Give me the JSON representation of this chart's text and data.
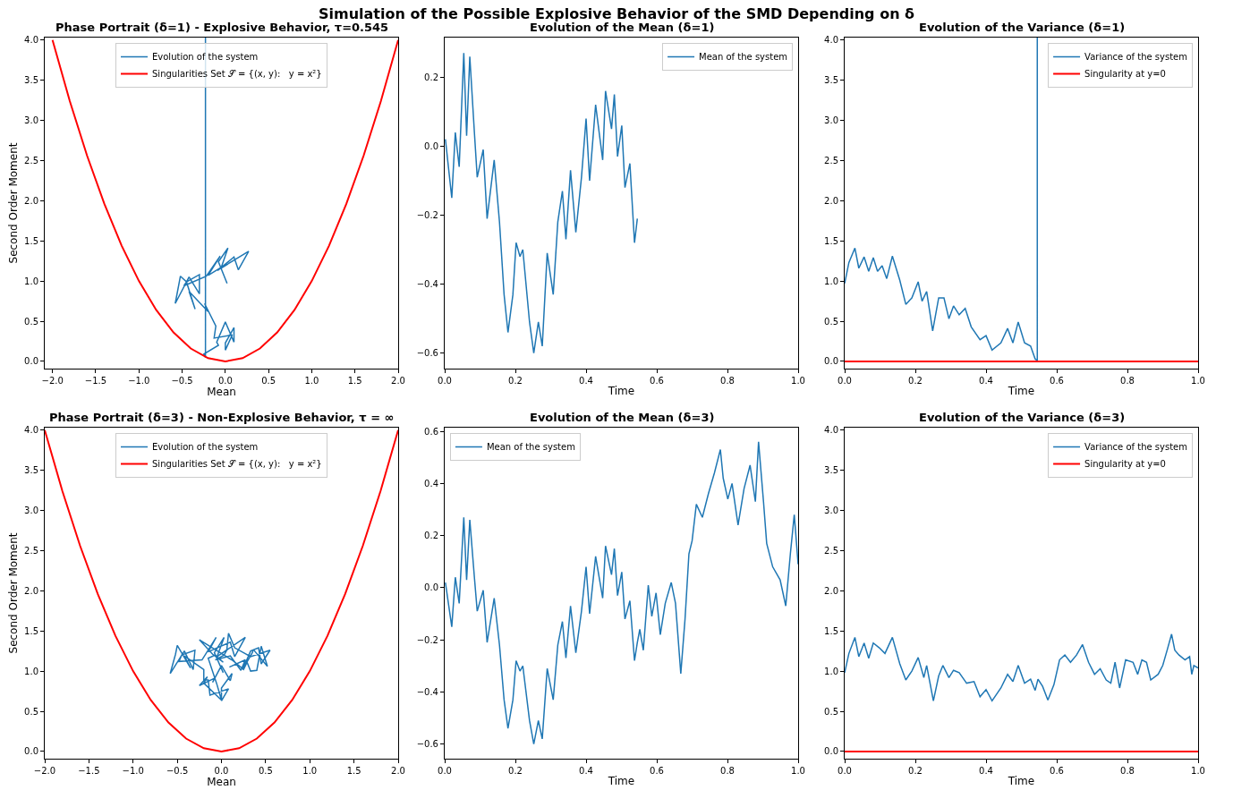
{
  "chart_data": [
    {
      "type": "line",
      "title": "Phase Portrait (δ=1) - Explosive Behavior, τ=0.545",
      "xlabel": "Mean",
      "ylabel": "Second Order Moment",
      "annotations": [
        "Simulation of the Possible Explosive Behavior of the SMD Depending on δ"
      ],
      "legend": "top",
      "xlim": [
        -2.09,
        2.0
      ],
      "ylim": [
        -0.09,
        4.03
      ],
      "xticks": [
        {
          "value": -2,
          "label": "−2.0"
        },
        {
          "value": -1.5,
          "label": "−1.5"
        },
        {
          "value": -1,
          "label": "−1.0"
        },
        {
          "value": -0.5,
          "label": "−0.5"
        },
        {
          "value": 0,
          "label": "0.0"
        },
        {
          "value": 0.5,
          "label": "0.5"
        },
        {
          "value": 1,
          "label": "1.0"
        },
        {
          "value": 1.5,
          "label": "1.5"
        },
        {
          "value": 2,
          "label": "2.0"
        }
      ],
      "yticks": [
        {
          "value": 0,
          "label": "0.0"
        },
        {
          "value": 0.5,
          "label": "0.5"
        },
        {
          "value": 1,
          "label": "1.0"
        },
        {
          "value": 1.5,
          "label": "1.5"
        },
        {
          "value": 2,
          "label": "2.0"
        },
        {
          "value": 2.5,
          "label": "2.5"
        },
        {
          "value": 3,
          "label": "3.0"
        },
        {
          "value": 3.5,
          "label": "3.5"
        },
        {
          "value": 4,
          "label": "4.0"
        }
      ],
      "series": [
        {
          "name": "Evolution of the system",
          "color": "#1f77b4",
          "x": [
            0.02,
            -0.08,
            0.03,
            -0.05,
            0.27,
            0.15,
            0.1,
            -0.09,
            -0.02,
            -0.2,
            -0.06,
            -0.22,
            -0.48,
            -0.45,
            -0.3,
            -0.3,
            -0.42,
            -0.58,
            -0.52,
            -0.45,
            -0.35,
            -0.42,
            -0.2,
            -0.24,
            -0.11,
            -0.13,
            0.08,
            0.0,
            0.0,
            0.1,
            0.1,
            0.0,
            -0.1,
            -0.08,
            -0.25,
            -0.23,
            -0.23
          ],
          "values": [
            0.97,
            1.24,
            1.41,
            1.16,
            1.37,
            1.14,
            1.3,
            1.13,
            1.19,
            1.07,
            1.31,
            1.06,
            0.94,
            0.99,
            1.08,
            0.84,
            1.05,
            0.72,
            1.06,
            0.99,
            0.65,
            0.87,
            0.62,
            0.72,
            0.44,
            0.29,
            0.33,
            0.14,
            0.23,
            0.42,
            0.24,
            0.49,
            0.24,
            0.2,
            0.09,
            0.05,
            4.03
          ]
        },
        {
          "name": "Singularities Set 𝒮 = {(x, y):   y = x²}",
          "color": "#ff0000",
          "x": [
            -2,
            -1.8,
            -1.6,
            -1.4,
            -1.2,
            -1,
            -0.8,
            -0.6,
            -0.4,
            -0.2,
            0,
            0.2,
            0.4,
            0.6,
            0.8,
            1,
            1.2,
            1.4,
            1.6,
            1.8,
            2
          ],
          "values": [
            4,
            3.24,
            2.56,
            1.96,
            1.44,
            1,
            0.64,
            0.36,
            0.16,
            0.04,
            0,
            0.04,
            0.16,
            0.36,
            0.64,
            1,
            1.44,
            1.96,
            2.56,
            3.24,
            4
          ]
        }
      ]
    },
    {
      "type": "line",
      "title": "Evolution of the Mean (δ=1)",
      "xlabel": "Time",
      "legend": "top right",
      "xlim": [
        0,
        1
      ],
      "ylim": [
        -0.645,
        0.315
      ],
      "xticks": [
        {
          "value": 0,
          "label": "0.0"
        },
        {
          "value": 0.2,
          "label": "0.2"
        },
        {
          "value": 0.4,
          "label": "0.4"
        },
        {
          "value": 0.6,
          "label": "0.6"
        },
        {
          "value": 0.8,
          "label": "0.8"
        },
        {
          "value": 1,
          "label": "1.0"
        }
      ],
      "yticks": [
        {
          "value": -0.6,
          "label": "−0.6"
        },
        {
          "value": -0.4,
          "label": "−0.4"
        },
        {
          "value": -0.2,
          "label": "−0.2"
        },
        {
          "value": 0,
          "label": "0.0"
        },
        {
          "value": 0.2,
          "label": "0.2"
        }
      ],
      "series": [
        {
          "name": "Mean of the system",
          "color": "#1f77b4",
          "x": [
            0.002,
            0.02,
            0.03,
            0.041,
            0.054,
            0.062,
            0.071,
            0.084,
            0.092,
            0.109,
            0.12,
            0.14,
            0.155,
            0.168,
            0.179,
            0.193,
            0.202,
            0.213,
            0.221,
            0.24,
            0.252,
            0.265,
            0.276,
            0.29,
            0.307,
            0.32,
            0.333,
            0.343,
            0.356,
            0.371,
            0.387,
            0.4,
            0.41,
            0.427,
            0.447,
            0.455,
            0.472,
            0.48,
            0.489,
            0.501,
            0.51,
            0.524,
            0.537,
            0.545
          ],
          "values": [
            0.02,
            -0.15,
            0.04,
            -0.06,
            0.27,
            0.03,
            0.26,
            0.04,
            -0.09,
            -0.01,
            -0.21,
            -0.04,
            -0.22,
            -0.43,
            -0.54,
            -0.43,
            -0.28,
            -0.32,
            -0.3,
            -0.51,
            -0.6,
            -0.51,
            -0.58,
            -0.31,
            -0.43,
            -0.22,
            -0.13,
            -0.27,
            -0.07,
            -0.25,
            -0.09,
            0.08,
            -0.1,
            0.12,
            -0.04,
            0.16,
            0.05,
            0.15,
            -0.03,
            0.06,
            -0.12,
            -0.05,
            -0.28,
            -0.21
          ]
        }
      ]
    },
    {
      "type": "line",
      "title": "Evolution of the Variance (δ=1)",
      "xlabel": "Time",
      "legend": "top right",
      "xlim": [
        0,
        1
      ],
      "ylim": [
        -0.09,
        4.03
      ],
      "xticks": [
        {
          "value": 0,
          "label": "0.0"
        },
        {
          "value": 0.2,
          "label": "0.2"
        },
        {
          "value": 0.4,
          "label": "0.4"
        },
        {
          "value": 0.6,
          "label": "0.6"
        },
        {
          "value": 0.8,
          "label": "0.8"
        },
        {
          "value": 1,
          "label": "1.0"
        }
      ],
      "yticks": [
        {
          "value": 0,
          "label": "0.0"
        },
        {
          "value": 0.5,
          "label": "0.5"
        },
        {
          "value": 1,
          "label": "1.0"
        },
        {
          "value": 1.5,
          "label": "1.5"
        },
        {
          "value": 2,
          "label": "2.0"
        },
        {
          "value": 2.5,
          "label": "2.5"
        },
        {
          "value": 3,
          "label": "3.0"
        },
        {
          "value": 3.5,
          "label": "3.5"
        },
        {
          "value": 4,
          "label": "4.0"
        }
      ],
      "series": [
        {
          "name": "Variance of the system",
          "color": "#1f77b4",
          "x": [
            0,
            0.012,
            0.029,
            0.04,
            0.055,
            0.068,
            0.081,
            0.093,
            0.106,
            0.119,
            0.135,
            0.156,
            0.173,
            0.19,
            0.208,
            0.219,
            0.232,
            0.249,
            0.266,
            0.281,
            0.295,
            0.308,
            0.324,
            0.341,
            0.358,
            0.383,
            0.4,
            0.417,
            0.442,
            0.461,
            0.476,
            0.491,
            0.509,
            0.526,
            0.539,
            0.545,
            0.545
          ],
          "values": [
            0.97,
            1.23,
            1.41,
            1.16,
            1.3,
            1.12,
            1.29,
            1.12,
            1.19,
            1.03,
            1.31,
            1.01,
            0.71,
            0.79,
            0.99,
            0.75,
            0.87,
            0.38,
            0.79,
            0.79,
            0.53,
            0.69,
            0.58,
            0.66,
            0.43,
            0.27,
            0.32,
            0.14,
            0.23,
            0.41,
            0.23,
            0.49,
            0.23,
            0.19,
            0.03,
            0.01,
            4.03
          ]
        },
        {
          "name": "Singularity at y=0",
          "color": "#ff0000",
          "x": [
            0,
            1
          ],
          "values": [
            0,
            0
          ]
        }
      ]
    },
    {
      "type": "line",
      "title": "Phase Portrait (δ=3) - Non-Explosive Behavior, τ = ∞",
      "xlabel": "Mean",
      "ylabel": "Second Order Moment",
      "legend": "top",
      "xlim": [
        -2.0,
        2.0
      ],
      "ylim": [
        -0.09,
        4.03
      ],
      "xticks": [
        {
          "value": -2,
          "label": "−2.0"
        },
        {
          "value": -1.5,
          "label": "−1.5"
        },
        {
          "value": -1,
          "label": "−1.0"
        },
        {
          "value": -0.5,
          "label": "−0.5"
        },
        {
          "value": 0,
          "label": "0.0"
        },
        {
          "value": 0.5,
          "label": "0.5"
        },
        {
          "value": 1,
          "label": "1.0"
        },
        {
          "value": 1.5,
          "label": "1.5"
        },
        {
          "value": 2,
          "label": "2.0"
        }
      ],
      "yticks": [
        {
          "value": 0,
          "label": "0.0"
        },
        {
          "value": 0.5,
          "label": "0.5"
        },
        {
          "value": 1,
          "label": "1.0"
        },
        {
          "value": 1.5,
          "label": "1.5"
        },
        {
          "value": 2,
          "label": "2.0"
        },
        {
          "value": 2.5,
          "label": "2.5"
        },
        {
          "value": 3,
          "label": "3.0"
        },
        {
          "value": 3.5,
          "label": "3.5"
        },
        {
          "value": 4,
          "label": "4.0"
        }
      ],
      "series": [
        {
          "name": "Evolution of the system",
          "color": "#1f77b4",
          "x": [
            0.02,
            -0.08,
            0.03,
            -0.05,
            0.27,
            0.15,
            0.1,
            -0.05,
            -0.15,
            -0.06,
            -0.22,
            -0.48,
            -0.45,
            -0.3,
            -0.32,
            -0.42,
            -0.58,
            -0.52,
            -0.5,
            -0.35,
            -0.42,
            -0.2,
            -0.2,
            -0.15,
            -0.13,
            0.08,
            0.0,
            0.0,
            0.12,
            0.1,
            0.0,
            -0.1,
            -0.08,
            -0.25,
            -0.16,
            -0.2,
            0.0,
            -0.05,
            -0.15,
            -0.07,
            0.02,
            -0.1,
            -0.25,
            0.13,
            0.25,
            0.29,
            0.33,
            0.4,
            0.45,
            0.52,
            0.36,
            0.35,
            0.24,
            0.33,
            0.42,
            0.45,
            0.55,
            0.33,
            0.15,
            0.08,
            0.06,
            0.03,
            -0.07,
            0.1,
            0.22,
            0.27,
            0.09
          ],
          "values": [
            0.98,
            1.23,
            1.42,
            1.18,
            1.42,
            1.18,
            1.36,
            1.29,
            1.24,
            1.42,
            1.14,
            1.12,
            1.2,
            1.26,
            1.02,
            1.25,
            0.97,
            1.21,
            1.32,
            1.04,
            1.19,
            1.02,
            0.89,
            0.89,
            0.7,
            0.78,
            0.63,
            0.79,
            0.97,
            0.88,
            1.07,
            0.86,
            0.91,
            0.82,
            0.93,
            0.85,
            0.64,
            0.83,
            1.16,
            1.2,
            1.11,
            1.21,
            1.39,
            1.13,
            1.02,
            1.11,
            1.0,
            1.01,
            1.31,
            1.06,
            1.27,
            1.23,
            1.02,
            1.25,
            1.29,
            1.09,
            1.26,
            1.18,
            1.29,
            1.47,
            1.26,
            1.2,
            1.14,
            1.19,
            1.01,
            1.14,
            1.05
          ]
        },
        {
          "name": "Singularities Set 𝒮 = {(x, y):   y = x²}",
          "color": "#ff0000",
          "x": [
            -2,
            -1.8,
            -1.6,
            -1.4,
            -1.2,
            -1,
            -0.8,
            -0.6,
            -0.4,
            -0.2,
            0,
            0.2,
            0.4,
            0.6,
            0.8,
            1,
            1.2,
            1.4,
            1.6,
            1.8,
            2
          ],
          "values": [
            4,
            3.24,
            2.56,
            1.96,
            1.44,
            1,
            0.64,
            0.36,
            0.16,
            0.04,
            0,
            0.04,
            0.16,
            0.36,
            0.64,
            1,
            1.44,
            1.96,
            2.56,
            3.24,
            4
          ]
        }
      ]
    },
    {
      "type": "line",
      "title": "Evolution of the Mean (δ=3)",
      "xlabel": "Time",
      "legend": "top left",
      "xlim": [
        0,
        1
      ],
      "ylim": [
        -0.656,
        0.614
      ],
      "xticks": [
        {
          "value": 0,
          "label": "0.0"
        },
        {
          "value": 0.2,
          "label": "0.2"
        },
        {
          "value": 0.4,
          "label": "0.4"
        },
        {
          "value": 0.6,
          "label": "0.6"
        },
        {
          "value": 0.8,
          "label": "0.8"
        },
        {
          "value": 1,
          "label": "1.0"
        }
      ],
      "yticks": [
        {
          "value": -0.6,
          "label": "−0.6"
        },
        {
          "value": -0.4,
          "label": "−0.4"
        },
        {
          "value": -0.2,
          "label": "−0.2"
        },
        {
          "value": 0,
          "label": "0.0"
        },
        {
          "value": 0.2,
          "label": "0.2"
        },
        {
          "value": 0.4,
          "label": "0.4"
        },
        {
          "value": 0.6,
          "label": "0.6"
        }
      ],
      "series": [
        {
          "name": "Mean of the system",
          "color": "#1f77b4",
          "x": [
            0.002,
            0.02,
            0.03,
            0.041,
            0.054,
            0.062,
            0.071,
            0.084,
            0.092,
            0.109,
            0.12,
            0.14,
            0.155,
            0.168,
            0.179,
            0.193,
            0.202,
            0.213,
            0.221,
            0.24,
            0.252,
            0.265,
            0.276,
            0.29,
            0.307,
            0.32,
            0.333,
            0.343,
            0.356,
            0.371,
            0.387,
            0.4,
            0.41,
            0.427,
            0.447,
            0.455,
            0.472,
            0.48,
            0.489,
            0.501,
            0.51,
            0.524,
            0.537,
            0.545,
            0.552,
            0.562,
            0.576,
            0.586,
            0.598,
            0.61,
            0.624,
            0.641,
            0.653,
            0.668,
            0.68,
            0.691,
            0.7,
            0.712,
            0.729,
            0.746,
            0.763,
            0.78,
            0.788,
            0.801,
            0.813,
            0.83,
            0.847,
            0.864,
            0.879,
            0.888,
            0.902,
            0.911,
            0.928,
            0.949,
            0.965,
            0.978,
            0.989,
            1.0
          ],
          "values": [
            0.02,
            -0.15,
            0.04,
            -0.06,
            0.27,
            0.03,
            0.26,
            0.04,
            -0.09,
            -0.01,
            -0.21,
            -0.04,
            -0.22,
            -0.43,
            -0.54,
            -0.43,
            -0.28,
            -0.32,
            -0.3,
            -0.51,
            -0.6,
            -0.51,
            -0.58,
            -0.31,
            -0.43,
            -0.22,
            -0.13,
            -0.27,
            -0.07,
            -0.25,
            -0.09,
            0.08,
            -0.1,
            0.12,
            -0.04,
            0.16,
            0.05,
            0.15,
            -0.03,
            0.06,
            -0.12,
            -0.05,
            -0.28,
            -0.21,
            -0.16,
            -0.24,
            0.01,
            -0.11,
            -0.02,
            -0.18,
            -0.06,
            0.02,
            -0.06,
            -0.33,
            -0.12,
            0.13,
            0.18,
            0.32,
            0.27,
            0.36,
            0.44,
            0.53,
            0.42,
            0.34,
            0.4,
            0.24,
            0.38,
            0.47,
            0.33,
            0.56,
            0.33,
            0.17,
            0.08,
            0.03,
            -0.07,
            0.13,
            0.28,
            0.09
          ]
        }
      ]
    },
    {
      "type": "line",
      "title": "Evolution of the Variance (δ=3)",
      "xlabel": "Time",
      "legend": "top right",
      "xlim": [
        0,
        1
      ],
      "ylim": [
        -0.09,
        4.03
      ],
      "xticks": [
        {
          "value": 0,
          "label": "0.0"
        },
        {
          "value": 0.2,
          "label": "0.2"
        },
        {
          "value": 0.4,
          "label": "0.4"
        },
        {
          "value": 0.6,
          "label": "0.6"
        },
        {
          "value": 0.8,
          "label": "0.8"
        },
        {
          "value": 1,
          "label": "1.0"
        }
      ],
      "yticks": [
        {
          "value": 0,
          "label": "0.0"
        },
        {
          "value": 0.5,
          "label": "0.5"
        },
        {
          "value": 1,
          "label": "1.0"
        },
        {
          "value": 1.5,
          "label": "1.5"
        },
        {
          "value": 2,
          "label": "2.0"
        },
        {
          "value": 2.5,
          "label": "2.5"
        },
        {
          "value": 3,
          "label": "3.0"
        },
        {
          "value": 3.5,
          "label": "3.5"
        },
        {
          "value": 4,
          "label": "4.0"
        }
      ],
      "series": [
        {
          "name": "Variance of the system",
          "color": "#1f77b4",
          "x": [
            0,
            0.012,
            0.029,
            0.04,
            0.055,
            0.068,
            0.081,
            0.098,
            0.114,
            0.135,
            0.156,
            0.173,
            0.19,
            0.208,
            0.224,
            0.232,
            0.251,
            0.266,
            0.278,
            0.295,
            0.308,
            0.324,
            0.345,
            0.366,
            0.383,
            0.4,
            0.417,
            0.442,
            0.461,
            0.476,
            0.491,
            0.509,
            0.526,
            0.539,
            0.547,
            0.56,
            0.575,
            0.592,
            0.608,
            0.623,
            0.639,
            0.656,
            0.673,
            0.69,
            0.707,
            0.723,
            0.74,
            0.753,
            0.765,
            0.778,
            0.795,
            0.816,
            0.829,
            0.841,
            0.854,
            0.866,
            0.887,
            0.9,
            0.913,
            0.925,
            0.934,
            0.946,
            0.963,
            0.976,
            0.982,
            0.988,
            1.0
          ],
          "values": [
            0.98,
            1.22,
            1.42,
            1.18,
            1.35,
            1.16,
            1.35,
            1.29,
            1.22,
            1.42,
            1.09,
            0.89,
            1.0,
            1.17,
            0.92,
            1.07,
            0.63,
            0.94,
            1.07,
            0.92,
            1.01,
            0.98,
            0.85,
            0.87,
            0.68,
            0.77,
            0.63,
            0.79,
            0.96,
            0.87,
            1.07,
            0.85,
            0.9,
            0.76,
            0.9,
            0.81,
            0.64,
            0.83,
            1.14,
            1.2,
            1.11,
            1.2,
            1.33,
            1.11,
            0.96,
            1.03,
            0.89,
            0.85,
            1.11,
            0.79,
            1.14,
            1.11,
            0.96,
            1.14,
            1.11,
            0.89,
            0.96,
            1.07,
            1.27,
            1.46,
            1.26,
            1.2,
            1.14,
            1.18,
            0.96,
            1.07,
            1.04
          ]
        },
        {
          "name": "Singularity at y=0",
          "color": "#ff0000",
          "x": [
            0,
            1
          ],
          "values": [
            0,
            0
          ]
        }
      ]
    }
  ]
}
